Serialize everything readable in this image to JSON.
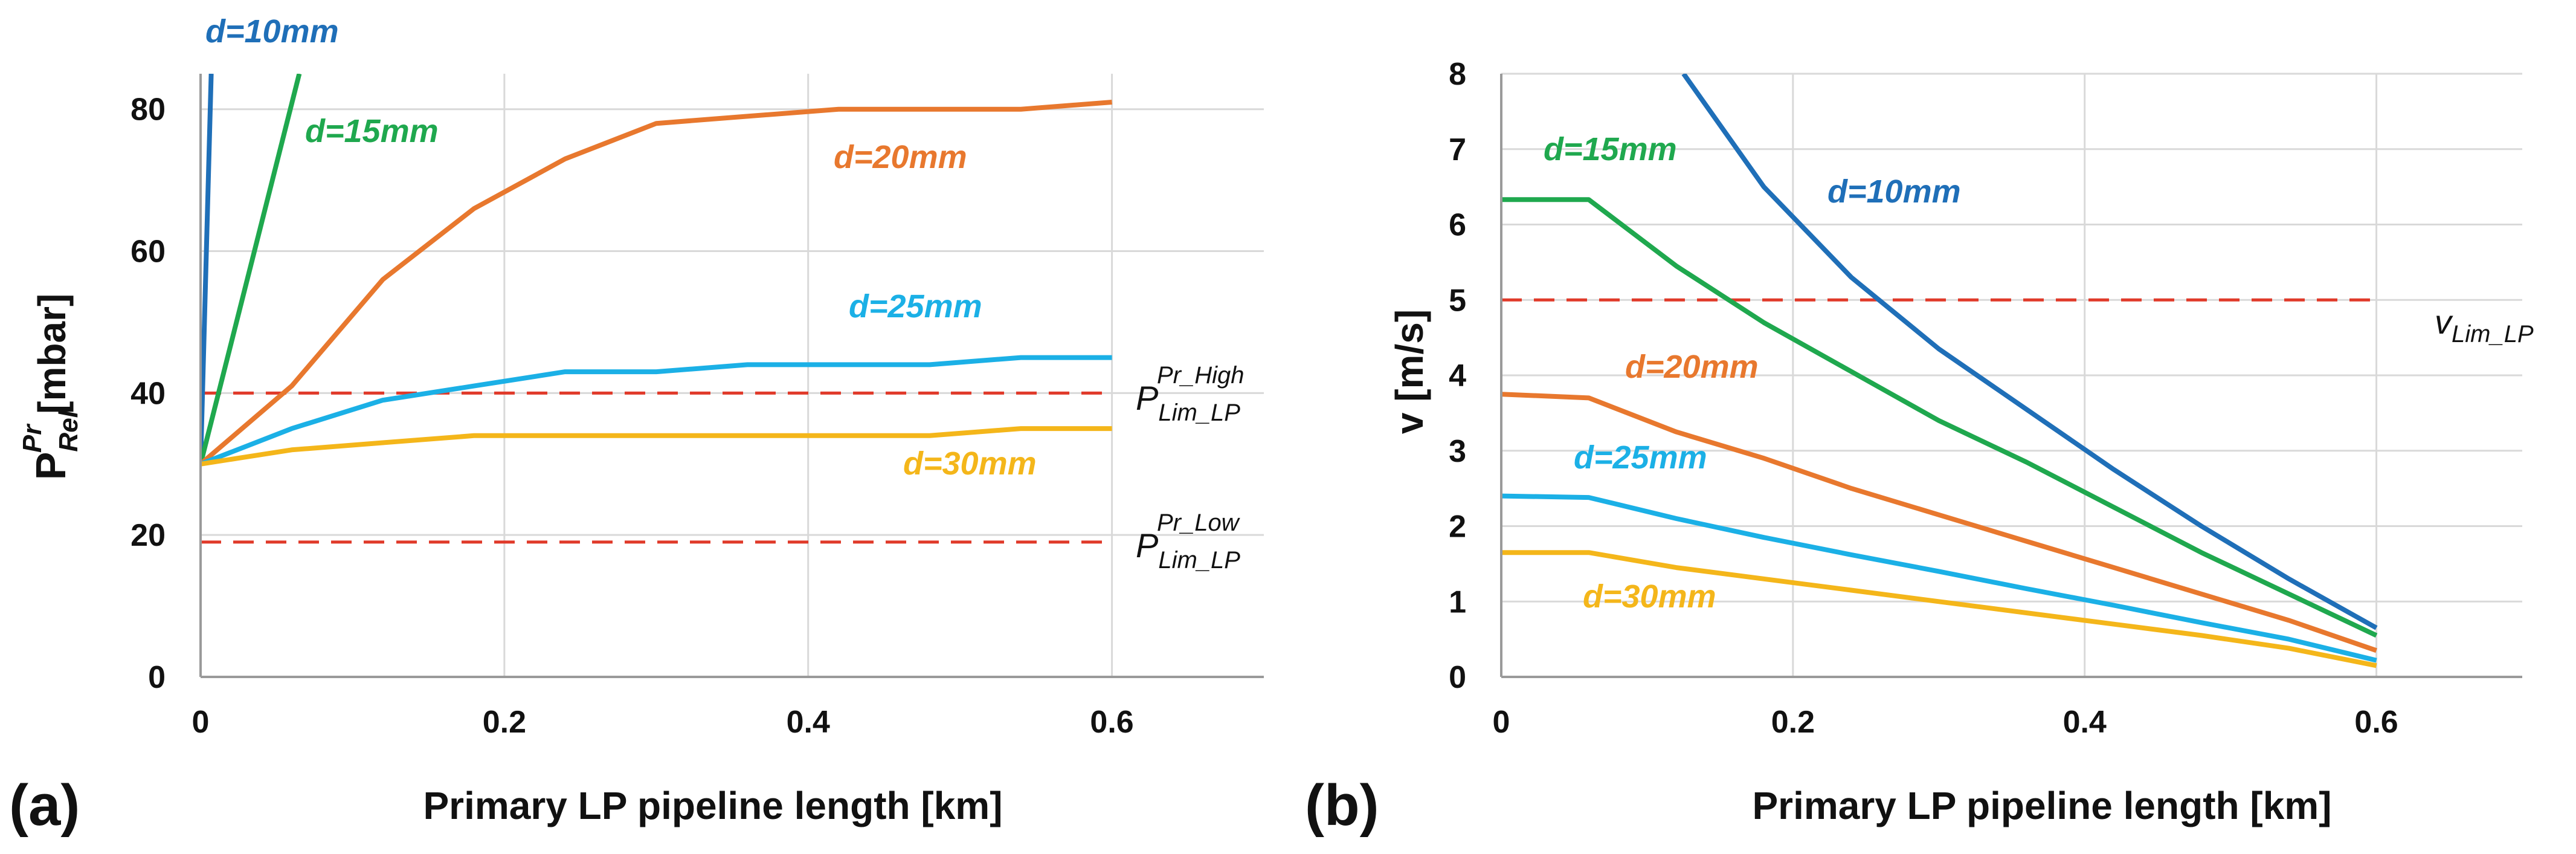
{
  "chart_data": [
    {
      "panel": "(a)",
      "type": "line",
      "xlabel": "Primary LP pipeline length [km]",
      "ylabel": {
        "main": "P",
        "superscript": "Pr",
        "subscript": "Rel",
        "unit": " [mbar]"
      },
      "xlim": [
        0,
        0.7
      ],
      "ylim": [
        0,
        85
      ],
      "xticks": [
        "0",
        "0.2",
        "0.4",
        "0.6"
      ],
      "yticks": [
        "0",
        "20",
        "40",
        "60",
        "80"
      ],
      "xtick_values": [
        0,
        0.2,
        0.4,
        0.6
      ],
      "ytick_values": [
        0,
        20,
        40,
        60,
        80
      ],
      "grid": true,
      "series": [
        {
          "name": "d=10mm",
          "color": "#1f6fb8",
          "x": [
            0,
            0.007
          ],
          "y": [
            30,
            85
          ]
        },
        {
          "name": "d=15mm",
          "color": "#1fa84e",
          "x": [
            0,
            0.065
          ],
          "y": [
            30,
            85
          ]
        },
        {
          "name": "d=20mm",
          "color": "#e8782e",
          "x": [
            0,
            0.06,
            0.12,
            0.18,
            0.24,
            0.3,
            0.36,
            0.42,
            0.48,
            0.54,
            0.6
          ],
          "y": [
            30,
            41,
            56,
            66,
            73,
            78,
            79,
            80,
            80,
            80,
            81
          ]
        },
        {
          "name": "d=25mm",
          "color": "#1bb0e6",
          "x": [
            0,
            0.06,
            0.12,
            0.18,
            0.24,
            0.3,
            0.36,
            0.42,
            0.48,
            0.54,
            0.6
          ],
          "y": [
            30,
            35,
            39,
            41,
            43,
            43,
            44,
            44,
            44,
            45,
            45
          ]
        },
        {
          "name": "d=30mm",
          "color": "#f4b61a",
          "x": [
            0,
            0.06,
            0.12,
            0.18,
            0.24,
            0.3,
            0.36,
            0.42,
            0.48,
            0.54,
            0.6
          ],
          "y": [
            30,
            32,
            33,
            34,
            34,
            34,
            34,
            34,
            34,
            35,
            35
          ]
        }
      ],
      "reference_lines": [
        {
          "y": 40,
          "color": "#e03a2a",
          "main": "P",
          "superscript": "Pr_High",
          "subscript": "Lim_LP"
        },
        {
          "y": 19,
          "color": "#e03a2a",
          "main": "P",
          "superscript": "Pr_Low",
          "subscript": "Lim_LP"
        }
      ]
    },
    {
      "panel": "(b)",
      "type": "line",
      "xlabel": "Primary LP pipeline length [km]",
      "ylabel": {
        "main": "v [m/s]"
      },
      "xlim": [
        0,
        0.7
      ],
      "ylim": [
        0,
        8
      ],
      "xticks": [
        "0",
        "0.2",
        "0.4",
        "0.6"
      ],
      "yticks": [
        "0",
        "1",
        "2",
        "3",
        "4",
        "5",
        "6",
        "7",
        "8"
      ],
      "xtick_values": [
        0,
        0.2,
        0.4,
        0.6
      ],
      "ytick_values": [
        0,
        1,
        2,
        3,
        4,
        5,
        6,
        7,
        8
      ],
      "grid": true,
      "series": [
        {
          "name": "d=10mm",
          "color": "#1f6fb8",
          "x": [
            0.125,
            0.18,
            0.24,
            0.3,
            0.36,
            0.42,
            0.48,
            0.54,
            0.6
          ],
          "y": [
            8,
            6.5,
            5.3,
            4.35,
            3.55,
            2.75,
            2.0,
            1.3,
            0.65
          ]
        },
        {
          "name": "d=15mm",
          "color": "#1fa84e",
          "x": [
            0,
            0.06,
            0.12,
            0.18,
            0.24,
            0.3,
            0.36,
            0.42,
            0.48,
            0.54,
            0.6
          ],
          "y": [
            6.33,
            6.33,
            5.45,
            4.7,
            4.05,
            3.4,
            2.85,
            2.25,
            1.65,
            1.1,
            0.55
          ]
        },
        {
          "name": "d=20mm",
          "color": "#e8782e",
          "x": [
            0,
            0.06,
            0.12,
            0.18,
            0.24,
            0.3,
            0.36,
            0.42,
            0.48,
            0.54,
            0.6
          ],
          "y": [
            3.75,
            3.7,
            3.25,
            2.9,
            2.5,
            2.15,
            1.8,
            1.45,
            1.1,
            0.75,
            0.35
          ]
        },
        {
          "name": "d=25mm",
          "color": "#1bb0e6",
          "x": [
            0,
            0.06,
            0.12,
            0.18,
            0.24,
            0.3,
            0.36,
            0.42,
            0.48,
            0.54,
            0.6
          ],
          "y": [
            2.4,
            2.38,
            2.1,
            1.85,
            1.62,
            1.4,
            1.17,
            0.95,
            0.72,
            0.5,
            0.22
          ]
        },
        {
          "name": "d=30mm",
          "color": "#f4b61a",
          "x": [
            0,
            0.06,
            0.12,
            0.18,
            0.24,
            0.3,
            0.36,
            0.42,
            0.48,
            0.54,
            0.6
          ],
          "y": [
            1.65,
            1.65,
            1.45,
            1.3,
            1.15,
            1.0,
            0.85,
            0.7,
            0.55,
            0.38,
            0.15
          ]
        }
      ],
      "reference_lines": [
        {
          "y": 5,
          "color": "#e03a2a",
          "main": "v",
          "subscript": "Lim_LP"
        }
      ]
    }
  ]
}
